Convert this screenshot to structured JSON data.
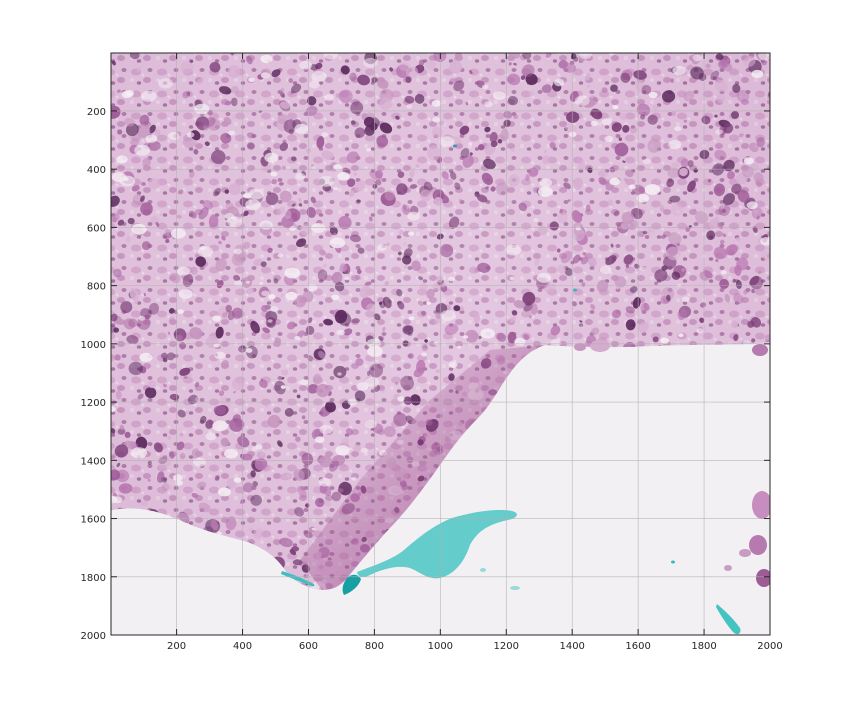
{
  "image": {
    "description_free": true,
    "colors": {
      "background": "#f2f0f2",
      "tissue_light": "#dcb8d6",
      "tissue_mid": "#c493bd",
      "nuclei": "#7b3f78",
      "nuclei_dark": "#5b2a5d",
      "dense_stroma": "#a15690",
      "cyan_fragment": "#4fc8c8",
      "cyan_dark": "#1c9fa3",
      "grid": "#bdbdbd",
      "axis": "#262626"
    }
  },
  "axes": {
    "x": {
      "range": [
        1,
        2000
      ],
      "ticks": [
        200,
        400,
        600,
        800,
        1000,
        1200,
        1400,
        1600,
        1800,
        2000
      ],
      "tick_labels": [
        "200",
        "400",
        "600",
        "800",
        "1000",
        "1200",
        "1400",
        "1600",
        "1800",
        "2000"
      ]
    },
    "y": {
      "range": [
        1,
        2000
      ],
      "reversed": true,
      "ticks": [
        200,
        400,
        600,
        800,
        1000,
        1200,
        1400,
        1600,
        1800,
        2000
      ],
      "tick_labels": [
        "200",
        "400",
        "600",
        "800",
        "1000",
        "1200",
        "1400",
        "1600",
        "1800",
        "2000"
      ]
    },
    "grid": true
  }
}
